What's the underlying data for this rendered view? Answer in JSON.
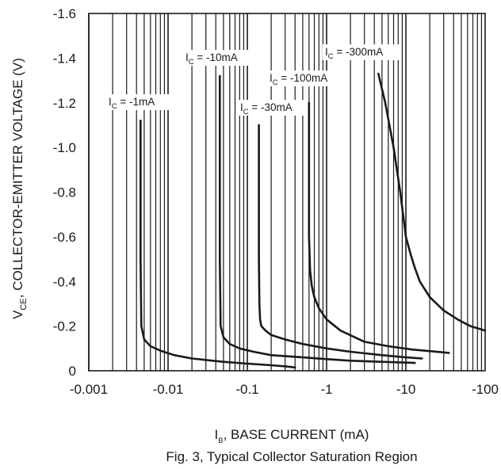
{
  "chart_data": {
    "type": "line",
    "title": "Fig. 3, Typical Collector Saturation Region",
    "x_axis": {
      "label_main": "I",
      "label_sub": "B",
      "label_rest": ", BASE CURRENT (mA)",
      "scale": "log",
      "range": [
        -0.001,
        -100
      ],
      "ticks": [
        -0.001,
        -0.01,
        -0.1,
        -1,
        -10,
        -100
      ],
      "tick_labels": [
        "-0.001",
        "-0.01",
        "-0.1",
        "-1",
        "-10",
        "-100"
      ]
    },
    "y_axis": {
      "label_main": "V",
      "label_sub": "CE",
      "label_rest": ", COLLECTOR-EMITTER VOLTAGE (V)",
      "scale": "linear",
      "range": [
        0,
        -1.6
      ],
      "ticks": [
        0,
        -0.2,
        -0.4,
        -0.6,
        -0.8,
        -1.0,
        -1.2,
        -1.4,
        -1.6
      ],
      "tick_labels": [
        "0",
        "-0.2",
        "-0.4",
        "-0.6",
        "-0.8",
        "-1.0",
        "-1.2",
        "-1.4",
        "-1.6"
      ]
    },
    "grid": "log-x minor gridlines, no horizontal gridlines",
    "series": [
      {
        "name": "IC = -1mA",
        "label_main": "I",
        "label_sub": "C",
        "label_rest": " = -1mA",
        "x": [
          -0.0045,
          -0.0045,
          -0.0046,
          -0.005,
          -0.006,
          -0.008,
          -0.012,
          -0.02,
          -0.05,
          -0.1,
          -0.2,
          -0.3,
          -0.4
        ],
        "y": [
          -1.12,
          -0.5,
          -0.2,
          -0.14,
          -0.11,
          -0.09,
          -0.07,
          -0.055,
          -0.04,
          -0.032,
          -0.025,
          -0.02,
          -0.015
        ]
      },
      {
        "name": "IC = -10mA",
        "label_main": "I",
        "label_sub": "C",
        "label_rest": " = -10mA",
        "x": [
          -0.045,
          -0.045,
          -0.046,
          -0.05,
          -0.06,
          -0.08,
          -0.12,
          -0.2,
          -0.5,
          -1,
          -2,
          -5,
          -13
        ],
        "y": [
          -1.32,
          -0.5,
          -0.2,
          -0.15,
          -0.12,
          -0.1,
          -0.085,
          -0.07,
          -0.06,
          -0.052,
          -0.045,
          -0.04,
          -0.035
        ]
      },
      {
        "name": "IC = -30mA",
        "label_main": "I",
        "label_sub": "C",
        "label_rest": " = -30mA",
        "x": [
          -0.14,
          -0.14,
          -0.142,
          -0.145,
          -0.15,
          -0.17,
          -0.2,
          -0.3,
          -0.5,
          -1,
          -2,
          -5,
          -10,
          -16
        ],
        "y": [
          -1.1,
          -0.5,
          -0.3,
          -0.23,
          -0.2,
          -0.18,
          -0.16,
          -0.14,
          -0.12,
          -0.1,
          -0.085,
          -0.07,
          -0.06,
          -0.055
        ]
      },
      {
        "name": "IC = -100mA",
        "label_main": "I",
        "label_sub": "C",
        "label_rest": " = -100mA",
        "x": [
          -0.6,
          -0.6,
          -0.62,
          -0.65,
          -0.7,
          -0.8,
          -1,
          -1.5,
          -3,
          -6,
          -12,
          -35
        ],
        "y": [
          -1.2,
          -0.6,
          -0.45,
          -0.38,
          -0.33,
          -0.28,
          -0.23,
          -0.18,
          -0.13,
          -0.11,
          -0.095,
          -0.08
        ]
      },
      {
        "name": "IC = -300mA",
        "label_main": "I",
        "label_sub": "C",
        "label_rest": " = -300mA",
        "x": [
          -4.5,
          -5.5,
          -7,
          -8.5,
          -10,
          -11.5,
          -13,
          -15,
          -20,
          -30,
          -45,
          -65,
          -100
        ],
        "y": [
          -1.33,
          -1.2,
          -1.0,
          -0.8,
          -0.6,
          -0.52,
          -0.46,
          -0.4,
          -0.33,
          -0.27,
          -0.23,
          -0.2,
          -0.18
        ]
      }
    ]
  }
}
